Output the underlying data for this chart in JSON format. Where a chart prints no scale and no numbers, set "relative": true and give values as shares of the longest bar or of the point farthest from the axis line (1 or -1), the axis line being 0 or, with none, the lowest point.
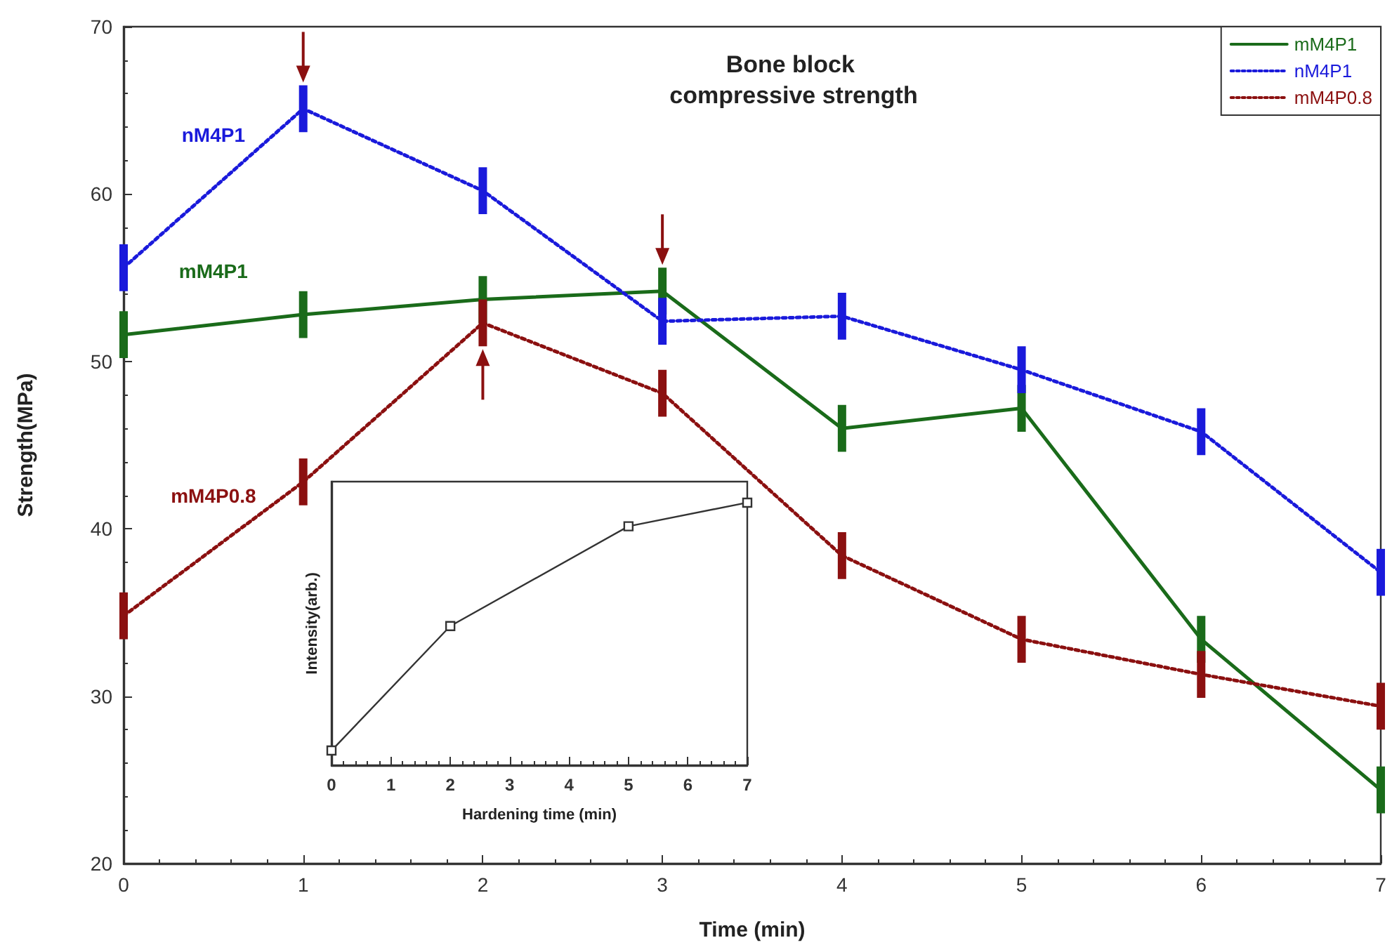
{
  "chart_data": [
    {
      "type": "line",
      "title": "Bone block compressive strength",
      "xlabel": "Time (min)",
      "ylabel": "Strength(MPa)",
      "x": [
        0,
        1,
        2,
        3,
        4,
        5,
        6,
        7
      ],
      "series": [
        {
          "name": "mM4P1",
          "color": "#1a6b1a",
          "line_style": "solid",
          "values": [
            51.6,
            52.8,
            53.7,
            54.2,
            46.0,
            47.2,
            33.4,
            24.4
          ],
          "errors": [
            1.4,
            1.4,
            1.4,
            1.4,
            1.4,
            1.4,
            1.4,
            1.4
          ]
        },
        {
          "name": "nM4P1",
          "color": "#1a1adb",
          "line_style": "dotted",
          "values": [
            55.6,
            65.1,
            60.2,
            52.4,
            52.7,
            49.5,
            45.8,
            37.4
          ],
          "errors": [
            1.4,
            1.4,
            1.4,
            1.4,
            1.4,
            1.4,
            1.4,
            1.4
          ]
        },
        {
          "name": "mM4P0.8",
          "color": "#8b1010",
          "line_style": "dotted",
          "values": [
            34.8,
            42.8,
            52.3,
            48.1,
            38.4,
            33.4,
            31.3,
            29.4
          ],
          "errors": [
            1.4,
            1.4,
            1.4,
            1.4,
            1.4,
            1.4,
            1.4,
            1.4
          ]
        }
      ],
      "annotations": [
        "mM4P1",
        "nM4P1",
        "mM4P0.8"
      ],
      "xlim": [
        0,
        7
      ],
      "xticks": [
        0,
        1,
        2,
        3,
        4,
        5,
        6,
        7
      ],
      "ylim": [
        20,
        70
      ],
      "yticks": [
        20,
        30,
        40,
        50,
        60,
        70
      ],
      "grid": false,
      "legend": "top right",
      "marker": "none"
    },
    {
      "type": "line",
      "relative": true,
      "xlabel": "Hardening time (min)",
      "ylabel": "Intensity(arb.)",
      "x": [
        0,
        2,
        5,
        7
      ],
      "series": [
        {
          "color": "#333333",
          "values": [
            0.056,
            0.53,
            0.91,
            1.0
          ]
        }
      ],
      "xlim": [
        0,
        7
      ],
      "xticks": [
        0,
        1,
        2,
        3,
        4,
        5,
        6,
        7
      ],
      "tick_labels": "x",
      "grid": false,
      "legend": false,
      "marker": "square"
    }
  ]
}
